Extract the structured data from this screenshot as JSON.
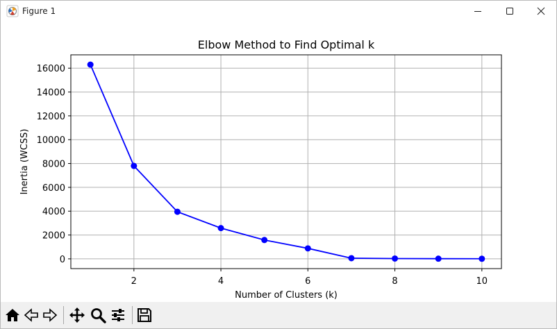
{
  "window": {
    "title": "Figure 1",
    "app_icon": "matplotlib-figure-icon",
    "controls": [
      "minimize-icon",
      "maximize-icon",
      "close-icon"
    ]
  },
  "toolbar": {
    "buttons": [
      {
        "name": "home",
        "icon": "home-icon"
      },
      {
        "name": "back",
        "icon": "arrow-left-icon"
      },
      {
        "name": "forward",
        "icon": "arrow-right-icon"
      },
      {
        "name": "pan",
        "icon": "move-icon"
      },
      {
        "name": "zoom",
        "icon": "magnifier-icon"
      },
      {
        "name": "configure-subplots",
        "icon": "sliders-icon"
      },
      {
        "name": "save",
        "icon": "floppy-disk-icon"
      }
    ]
  },
  "chart_data": {
    "type": "line",
    "title": "Elbow Method to Find Optimal k",
    "xlabel": "Number of Clusters (k)",
    "ylabel": "Inertia (WCSS)",
    "x": [
      1,
      2,
      3,
      4,
      5,
      6,
      7,
      8,
      9,
      10
    ],
    "series": [
      {
        "values": [
          16300,
          7800,
          3950,
          2580,
          1580,
          880,
          55,
          25,
          15,
          8
        ],
        "color": "#0000ff",
        "marker": "circle"
      }
    ],
    "xlim": [
      0.55,
      10.45
    ],
    "ylim": [
      -820,
      17120
    ],
    "xticks": [
      2,
      4,
      6,
      8,
      10
    ],
    "yticks": [
      0,
      2000,
      4000,
      6000,
      8000,
      10000,
      12000,
      14000,
      16000
    ],
    "grid": true,
    "grid_color": "#b0b0b0"
  }
}
